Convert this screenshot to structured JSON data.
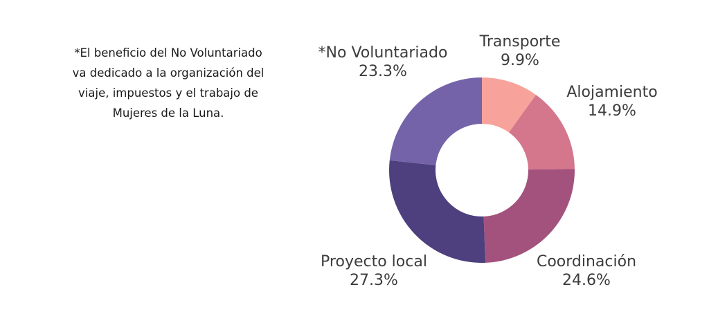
{
  "note": {
    "lines": [
      "*El beneficio del No Voluntariado",
      "va dedicado a la organización del",
      "viaje, impuestos y el trabajo de",
      "Mujeres de la Luna."
    ]
  },
  "chart_data": {
    "type": "pie",
    "variant": "donut",
    "title": "",
    "slices": [
      {
        "label": "Transporte",
        "value": 9.9,
        "value_label": "9.9%",
        "color": "#f7a29b"
      },
      {
        "label": "Alojamiento",
        "value": 14.9,
        "value_label": "14.9%",
        "color": "#d4768c"
      },
      {
        "label": "Coordinación",
        "value": 24.6,
        "value_label": "24.6%",
        "color": "#a3527d"
      },
      {
        "label": "Proyecto local",
        "value": 27.3,
        "value_label": "27.3%",
        "color": "#4e3f7e"
      },
      {
        "label": "*No Voluntariado",
        "value": 23.3,
        "value_label": "23.3%",
        "color": "#7463a8"
      }
    ]
  }
}
